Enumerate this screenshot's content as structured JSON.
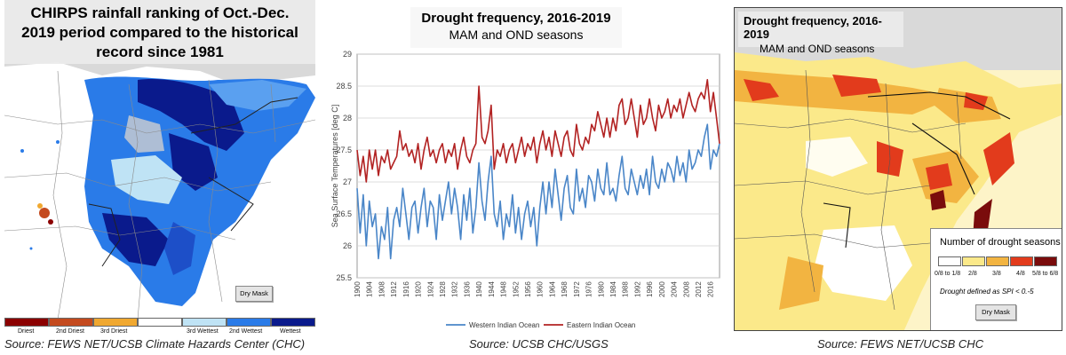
{
  "left_panel": {
    "title_lines": [
      "CHIRPS rainfall ranking of Oct.-Dec.",
      "2019 period compared to the historical",
      "record since 1981"
    ],
    "dry_mask_label": "Dry Mask",
    "legend": [
      {
        "label": "Driest",
        "color": "#8b0000"
      },
      {
        "label": "2nd Driest",
        "color": "#c44a1e"
      },
      {
        "label": "3rd Driest",
        "color": "#f0a830"
      },
      {
        "label": "",
        "color": "#ffffff"
      },
      {
        "label": "3rd Wettest",
        "color": "#bfe3f5"
      },
      {
        "label": "2nd Wettest",
        "color": "#2a7be8"
      },
      {
        "label": "Wettest",
        "color": "#0a1a8c"
      }
    ],
    "source": "Source: FEWS NET/UCSB Climate Hazards Center (CHC)"
  },
  "middle_panel": {
    "title": "Drought frequency, 2016-2019",
    "subtitle": "MAM and OND seasons",
    "source": "Source: UCSB CHC/USGS"
  },
  "right_panel": {
    "title": "Drought frequency, 2016-2019",
    "subtitle": "MAM and OND seasons",
    "legend_title": "Number of drought seasons",
    "legend": [
      {
        "label": "0/8 to 1/8",
        "color": "#ffffff"
      },
      {
        "label": "2/8",
        "color": "#fbe98a"
      },
      {
        "label": "3/8",
        "color": "#f2b441"
      },
      {
        "label": "4/8",
        "color": "#e23b1c"
      },
      {
        "label": "5/8 to 6/8",
        "color": "#7a0c0c"
      }
    ],
    "note": "Drought defined as SPI < 0.-5",
    "dry_mask_label": "Dry Mask",
    "source": "Source: FEWS NET/UCSB CHC"
  },
  "chart_data": {
    "type": "line",
    "title": "",
    "xlabel": "",
    "ylabel": "Sea Surface Temperatures [deg C]",
    "ylim": [
      25.5,
      29
    ],
    "yticks": [
      25.5,
      26,
      26.5,
      27,
      27.5,
      28,
      28.5,
      29
    ],
    "xlim": [
      1900,
      2019
    ],
    "xticks": [
      1900,
      1904,
      1908,
      1912,
      1916,
      1920,
      1924,
      1928,
      1932,
      1936,
      1940,
      1944,
      1948,
      1952,
      1956,
      1960,
      1964,
      1968,
      1972,
      1976,
      1980,
      1984,
      1988,
      1992,
      1996,
      2000,
      2004,
      2008,
      2012,
      2016
    ],
    "grid": true,
    "legend_position": "bottom",
    "series": [
      {
        "name": "Western Indian Ocean",
        "color": "#4a86c8",
        "points": [
          [
            1900,
            26.9
          ],
          [
            1901,
            26.2
          ],
          [
            1902,
            26.8
          ],
          [
            1903,
            26.0
          ],
          [
            1904,
            26.7
          ],
          [
            1905,
            26.3
          ],
          [
            1906,
            26.5
          ],
          [
            1907,
            25.8
          ],
          [
            1908,
            26.3
          ],
          [
            1909,
            26.1
          ],
          [
            1910,
            26.6
          ],
          [
            1911,
            25.8
          ],
          [
            1912,
            26.4
          ],
          [
            1913,
            26.6
          ],
          [
            1914,
            26.3
          ],
          [
            1915,
            26.9
          ],
          [
            1916,
            26.5
          ],
          [
            1917,
            26.1
          ],
          [
            1918,
            26.6
          ],
          [
            1919,
            26.7
          ],
          [
            1920,
            26.2
          ],
          [
            1921,
            26.6
          ],
          [
            1922,
            26.9
          ],
          [
            1923,
            26.3
          ],
          [
            1924,
            26.7
          ],
          [
            1925,
            26.6
          ],
          [
            1926,
            26.1
          ],
          [
            1927,
            26.8
          ],
          [
            1928,
            26.4
          ],
          [
            1929,
            26.7
          ],
          [
            1930,
            27.0
          ],
          [
            1931,
            26.5
          ],
          [
            1932,
            26.9
          ],
          [
            1933,
            26.6
          ],
          [
            1934,
            26.1
          ],
          [
            1935,
            26.8
          ],
          [
            1936,
            26.4
          ],
          [
            1937,
            26.9
          ],
          [
            1938,
            26.2
          ],
          [
            1939,
            26.6
          ],
          [
            1940,
            27.3
          ],
          [
            1941,
            26.7
          ],
          [
            1942,
            26.4
          ],
          [
            1943,
            27.0
          ],
          [
            1944,
            27.4
          ],
          [
            1945,
            26.5
          ],
          [
            1946,
            26.3
          ],
          [
            1947,
            26.7
          ],
          [
            1948,
            26.1
          ],
          [
            1949,
            26.5
          ],
          [
            1950,
            26.3
          ],
          [
            1951,
            26.8
          ],
          [
            1952,
            26.2
          ],
          [
            1953,
            26.6
          ],
          [
            1954,
            26.1
          ],
          [
            1955,
            26.5
          ],
          [
            1956,
            26.7
          ],
          [
            1957,
            26.3
          ],
          [
            1958,
            26.6
          ],
          [
            1959,
            26.0
          ],
          [
            1960,
            26.6
          ],
          [
            1961,
            27.0
          ],
          [
            1962,
            26.5
          ],
          [
            1963,
            27.0
          ],
          [
            1964,
            26.6
          ],
          [
            1965,
            27.2
          ],
          [
            1966,
            26.8
          ],
          [
            1967,
            26.4
          ],
          [
            1968,
            26.9
          ],
          [
            1969,
            27.1
          ],
          [
            1970,
            26.6
          ],
          [
            1971,
            26.5
          ],
          [
            1972,
            27.2
          ],
          [
            1973,
            26.7
          ],
          [
            1974,
            26.9
          ],
          [
            1975,
            26.6
          ],
          [
            1976,
            27.1
          ],
          [
            1977,
            27.0
          ],
          [
            1978,
            26.7
          ],
          [
            1979,
            27.2
          ],
          [
            1980,
            26.9
          ],
          [
            1981,
            26.8
          ],
          [
            1982,
            27.3
          ],
          [
            1983,
            26.8
          ],
          [
            1984,
            26.9
          ],
          [
            1985,
            26.7
          ],
          [
            1986,
            27.1
          ],
          [
            1987,
            27.4
          ],
          [
            1988,
            26.9
          ],
          [
            1989,
            26.8
          ],
          [
            1990,
            27.2
          ],
          [
            1991,
            27.0
          ],
          [
            1992,
            26.8
          ],
          [
            1993,
            27.1
          ],
          [
            1994,
            26.9
          ],
          [
            1995,
            27.2
          ],
          [
            1996,
            26.8
          ],
          [
            1997,
            27.4
          ],
          [
            1998,
            27.0
          ],
          [
            1999,
            26.9
          ],
          [
            2000,
            27.2
          ],
          [
            2001,
            27.0
          ],
          [
            2002,
            27.3
          ],
          [
            2003,
            27.2
          ],
          [
            2004,
            27.0
          ],
          [
            2005,
            27.4
          ],
          [
            2006,
            27.1
          ],
          [
            2007,
            27.3
          ],
          [
            2008,
            27.0
          ],
          [
            2009,
            27.5
          ],
          [
            2010,
            27.2
          ],
          [
            2011,
            27.3
          ],
          [
            2012,
            27.5
          ],
          [
            2013,
            27.4
          ],
          [
            2014,
            27.7
          ],
          [
            2015,
            27.9
          ],
          [
            2016,
            27.2
          ],
          [
            2017,
            27.5
          ],
          [
            2018,
            27.4
          ],
          [
            2019,
            27.6
          ]
        ]
      },
      {
        "name": "Eastern Indian Ocean",
        "color": "#b22222",
        "points": [
          [
            1900,
            27.5
          ],
          [
            1901,
            27.1
          ],
          [
            1902,
            27.4
          ],
          [
            1903,
            27.0
          ],
          [
            1904,
            27.5
          ],
          [
            1905,
            27.2
          ],
          [
            1906,
            27.5
          ],
          [
            1907,
            27.1
          ],
          [
            1908,
            27.4
          ],
          [
            1909,
            27.3
          ],
          [
            1910,
            27.5
          ],
          [
            1911,
            27.2
          ],
          [
            1912,
            27.3
          ],
          [
            1913,
            27.4
          ],
          [
            1914,
            27.8
          ],
          [
            1915,
            27.5
          ],
          [
            1916,
            27.6
          ],
          [
            1917,
            27.4
          ],
          [
            1918,
            27.5
          ],
          [
            1919,
            27.3
          ],
          [
            1920,
            27.6
          ],
          [
            1921,
            27.2
          ],
          [
            1922,
            27.5
          ],
          [
            1923,
            27.7
          ],
          [
            1924,
            27.4
          ],
          [
            1925,
            27.5
          ],
          [
            1926,
            27.3
          ],
          [
            1927,
            27.5
          ],
          [
            1928,
            27.6
          ],
          [
            1929,
            27.3
          ],
          [
            1930,
            27.5
          ],
          [
            1931,
            27.4
          ],
          [
            1932,
            27.6
          ],
          [
            1933,
            27.2
          ],
          [
            1934,
            27.5
          ],
          [
            1935,
            27.7
          ],
          [
            1936,
            27.4
          ],
          [
            1937,
            27.3
          ],
          [
            1938,
            27.5
          ],
          [
            1939,
            27.6
          ],
          [
            1940,
            28.5
          ],
          [
            1941,
            27.7
          ],
          [
            1942,
            27.6
          ],
          [
            1943,
            27.8
          ],
          [
            1944,
            28.2
          ],
          [
            1945,
            27.2
          ],
          [
            1946,
            27.5
          ],
          [
            1947,
            27.4
          ],
          [
            1948,
            27.6
          ],
          [
            1949,
            27.3
          ],
          [
            1950,
            27.5
          ],
          [
            1951,
            27.6
          ],
          [
            1952,
            27.3
          ],
          [
            1953,
            27.5
          ],
          [
            1954,
            27.7
          ],
          [
            1955,
            27.4
          ],
          [
            1956,
            27.6
          ],
          [
            1957,
            27.5
          ],
          [
            1958,
            27.7
          ],
          [
            1959,
            27.3
          ],
          [
            1960,
            27.6
          ],
          [
            1961,
            27.8
          ],
          [
            1962,
            27.5
          ],
          [
            1963,
            27.7
          ],
          [
            1964,
            27.4
          ],
          [
            1965,
            27.8
          ],
          [
            1966,
            27.6
          ],
          [
            1967,
            27.4
          ],
          [
            1968,
            27.7
          ],
          [
            1969,
            27.8
          ],
          [
            1970,
            27.5
          ],
          [
            1971,
            27.4
          ],
          [
            1972,
            27.9
          ],
          [
            1973,
            27.6
          ],
          [
            1974,
            27.5
          ],
          [
            1975,
            27.7
          ],
          [
            1976,
            27.6
          ],
          [
            1977,
            27.9
          ],
          [
            1978,
            27.8
          ],
          [
            1979,
            28.1
          ],
          [
            1980,
            27.9
          ],
          [
            1981,
            27.7
          ],
          [
            1982,
            28.0
          ],
          [
            1983,
            27.7
          ],
          [
            1984,
            28.0
          ],
          [
            1985,
            27.8
          ],
          [
            1986,
            28.2
          ],
          [
            1987,
            28.3
          ],
          [
            1988,
            27.9
          ],
          [
            1989,
            28.0
          ],
          [
            1990,
            28.3
          ],
          [
            1991,
            28.0
          ],
          [
            1992,
            27.7
          ],
          [
            1993,
            28.2
          ],
          [
            1994,
            27.9
          ],
          [
            1995,
            28.0
          ],
          [
            1996,
            28.3
          ],
          [
            1997,
            28.0
          ],
          [
            1998,
            27.8
          ],
          [
            1999,
            28.2
          ],
          [
            2000,
            28.0
          ],
          [
            2001,
            28.1
          ],
          [
            2002,
            28.3
          ],
          [
            2003,
            28.0
          ],
          [
            2004,
            28.2
          ],
          [
            2005,
            28.1
          ],
          [
            2006,
            28.3
          ],
          [
            2007,
            28.0
          ],
          [
            2008,
            28.2
          ],
          [
            2009,
            28.4
          ],
          [
            2010,
            28.2
          ],
          [
            2011,
            28.1
          ],
          [
            2012,
            28.3
          ],
          [
            2013,
            28.4
          ],
          [
            2014,
            28.3
          ],
          [
            2015,
            28.6
          ],
          [
            2016,
            28.1
          ],
          [
            2017,
            28.4
          ],
          [
            2018,
            28.0
          ],
          [
            2019,
            27.6
          ]
        ]
      }
    ]
  }
}
